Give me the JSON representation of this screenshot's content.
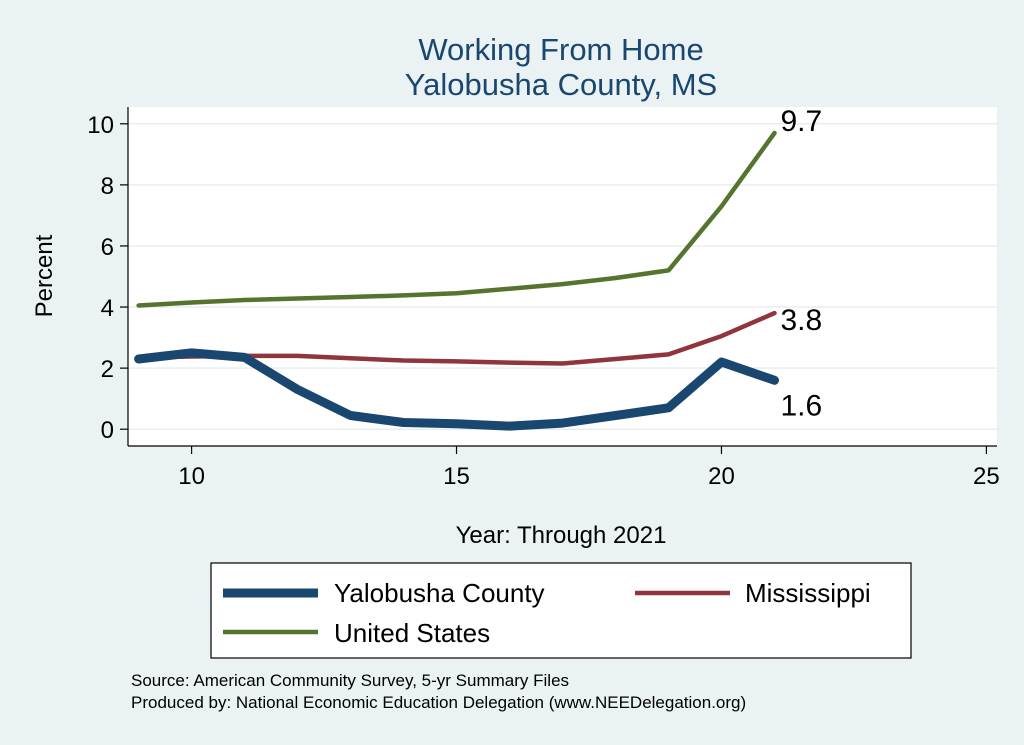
{
  "chart_data": {
    "type": "line",
    "title": "Working From Home",
    "subtitle": "Yalobusha County, MS",
    "xlabel": "Year: Through 2021",
    "ylabel": "Percent",
    "xlim": [
      8.8,
      25.2
    ],
    "ylim": [
      -0.55,
      10.55
    ],
    "xticks": [
      10,
      15,
      20,
      25
    ],
    "yticks": [
      0,
      2,
      4,
      6,
      8,
      10
    ],
    "grid": true,
    "legend_position": "bottom",
    "series": [
      {
        "name": "Yalobusha County",
        "color": "#1a476f",
        "x": [
          9,
          10,
          11,
          12,
          13,
          14,
          15,
          16,
          17,
          18,
          19,
          20,
          21
        ],
        "y": [
          2.3,
          2.5,
          2.35,
          1.3,
          0.45,
          0.22,
          0.18,
          0.1,
          0.2,
          0.45,
          0.7,
          2.2,
          1.6
        ],
        "end_label": "1.6"
      },
      {
        "name": "Mississippi",
        "color": "#90353b",
        "x": [
          9,
          10,
          11,
          12,
          13,
          14,
          15,
          16,
          17,
          18,
          19,
          20,
          21
        ],
        "y": [
          2.35,
          2.38,
          2.4,
          2.4,
          2.32,
          2.25,
          2.22,
          2.18,
          2.15,
          2.3,
          2.45,
          3.05,
          3.8
        ],
        "end_label": "3.8"
      },
      {
        "name": "United States",
        "color": "#55752f",
        "x": [
          9,
          10,
          11,
          12,
          13,
          14,
          15,
          16,
          17,
          18,
          19,
          20,
          21
        ],
        "y": [
          4.05,
          4.15,
          4.23,
          4.28,
          4.33,
          4.38,
          4.45,
          4.6,
          4.75,
          4.95,
          5.2,
          7.3,
          9.7
        ],
        "end_label": "9.7"
      }
    ],
    "notes": [
      "Source: American Community Survey, 5-yr Summary Files",
      "Produced by: National Economic Education Delegation (www.NEEDelegation.org)"
    ]
  }
}
